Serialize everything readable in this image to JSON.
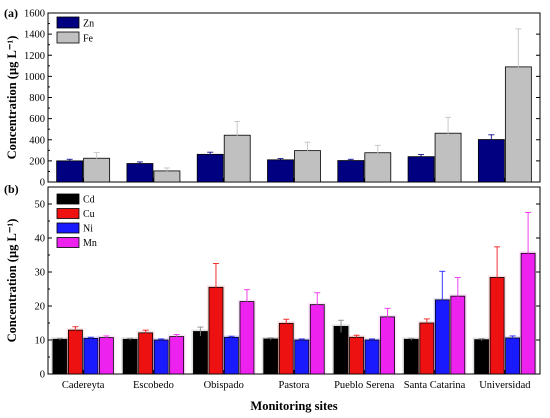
{
  "chart_data": [
    {
      "panel_label": "(a)",
      "type": "bar",
      "categories": [
        "Cadereyta",
        "Escobedo",
        "Obispado",
        "Pastora",
        "Pueblo Serena",
        "Santa Catarina",
        "Universidad"
      ],
      "series": [
        {
          "name": "Zn",
          "color": "#000080",
          "values": [
            200,
            175,
            262,
            210,
            203,
            240,
            402
          ],
          "errors": [
            15,
            15,
            20,
            12,
            12,
            20,
            45
          ]
        },
        {
          "name": "Fe",
          "color": "#c0c0c0",
          "values": [
            225,
            105,
            443,
            297,
            277,
            462,
            1090
          ],
          "errors": [
            55,
            28,
            130,
            80,
            70,
            150,
            360
          ]
        }
      ],
      "ylabel": "Concentration (µg L⁻¹)",
      "ylim": [
        0,
        1600
      ],
      "yticks": [
        0,
        200,
        400,
        600,
        800,
        1000,
        1200,
        1400,
        1600
      ],
      "legend": "top-left"
    },
    {
      "panel_label": "(b)",
      "type": "bar",
      "categories": [
        "Cadereyta",
        "Escobedo",
        "Obispado",
        "Pastora",
        "Pueblo Serena",
        "Santa Catarina",
        "Universidad"
      ],
      "series": [
        {
          "name": "Cd",
          "color": "#000000",
          "values": [
            10.2,
            10.2,
            12.5,
            10.3,
            14.0,
            10.2,
            10.1
          ],
          "errors": [
            0.3,
            0.3,
            1.3,
            0.3,
            1.8,
            0.3,
            0.3
          ]
        },
        {
          "name": "Cu",
          "color": "#ee1111",
          "values": [
            12.9,
            12.1,
            25.5,
            14.9,
            10.8,
            15.0,
            28.4
          ],
          "errors": [
            1.0,
            0.8,
            7.0,
            1.2,
            0.6,
            1.2,
            9.0
          ]
        },
        {
          "name": "Ni",
          "color": "#1a1aff",
          "values": [
            10.5,
            10.0,
            10.8,
            10.0,
            10.0,
            21.8,
            10.6
          ],
          "errors": [
            0.3,
            0.3,
            0.3,
            0.3,
            0.3,
            8.4,
            0.6
          ]
        },
        {
          "name": "Mn",
          "color": "#ee22ee",
          "values": [
            10.7,
            11.0,
            21.3,
            20.4,
            16.8,
            22.9,
            35.5
          ],
          "errors": [
            0.5,
            0.6,
            3.5,
            3.5,
            2.5,
            5.5,
            12.0
          ]
        }
      ],
      "ylabel": "Concentration (µg L⁻¹)",
      "xlabel": "Monitoring sites",
      "ylim": [
        0,
        55
      ],
      "yticks": [
        0,
        10,
        20,
        30,
        40,
        50
      ],
      "legend": "top-left"
    }
  ]
}
